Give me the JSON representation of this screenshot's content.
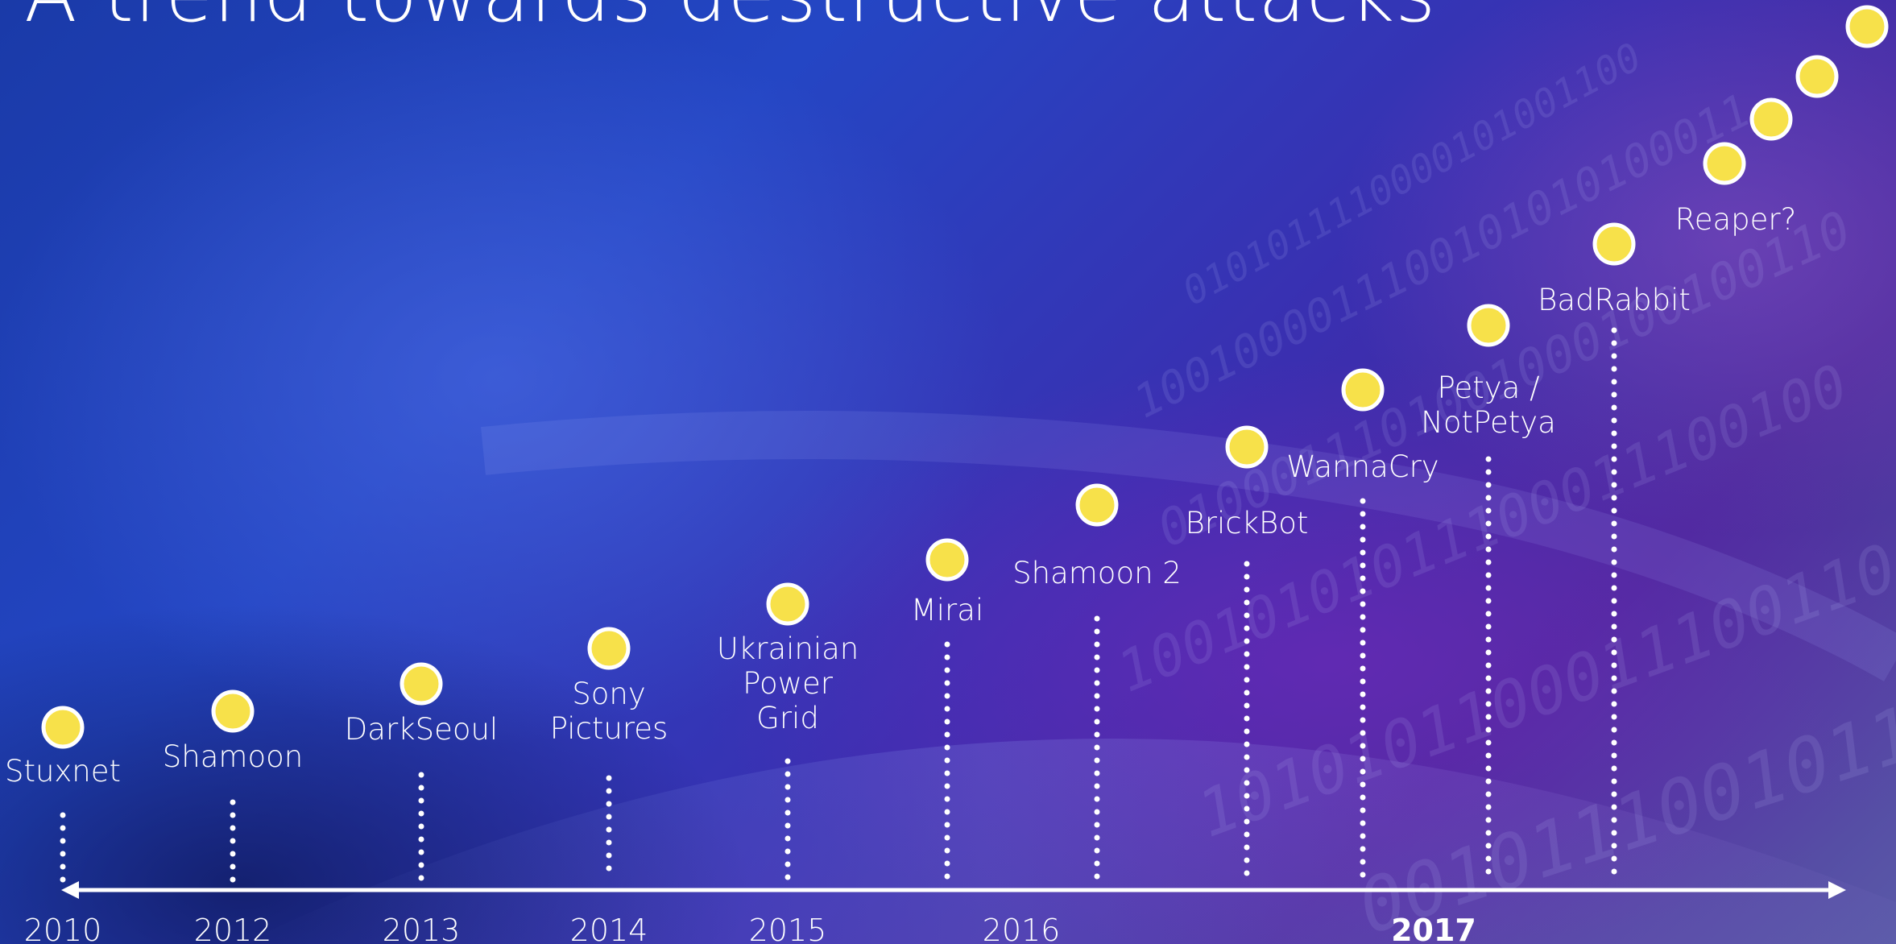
{
  "slide": {
    "title": "A trend towards destructive attacks"
  },
  "colors": {
    "dot_fill": "#f7e14a",
    "dot_stroke": "#ffffff",
    "line": "#ffffff",
    "background_primary": "#2446c4",
    "background_secondary": "#4a2a9c"
  },
  "timeline": {
    "years": [
      {
        "label": "2010",
        "emphasis": false
      },
      {
        "label": "2012",
        "emphasis": false
      },
      {
        "label": "2013",
        "emphasis": false
      },
      {
        "label": "2014",
        "emphasis": false
      },
      {
        "label": "2015",
        "emphasis": false
      },
      {
        "label": "2016",
        "emphasis": false
      },
      {
        "label": "2017",
        "emphasis": true
      }
    ],
    "events": [
      {
        "lines": [
          "Stuxnet"
        ]
      },
      {
        "lines": [
          "Shamoon"
        ]
      },
      {
        "lines": [
          "DarkSeoul"
        ]
      },
      {
        "lines": [
          "Sony",
          "Pictures"
        ]
      },
      {
        "lines": [
          "Ukrainian",
          "Power",
          "Grid"
        ]
      },
      {
        "lines": [
          "Mirai"
        ]
      },
      {
        "lines": [
          "Shamoon 2"
        ]
      },
      {
        "lines": [
          "BrickBot"
        ]
      },
      {
        "lines": [
          "WannaCry"
        ]
      },
      {
        "lines": [
          "Petya /",
          "NotPetya"
        ]
      },
      {
        "lines": [
          "BadRabbit"
        ]
      }
    ],
    "future": {
      "label": "Reaper?",
      "dot_count": 4
    }
  }
}
